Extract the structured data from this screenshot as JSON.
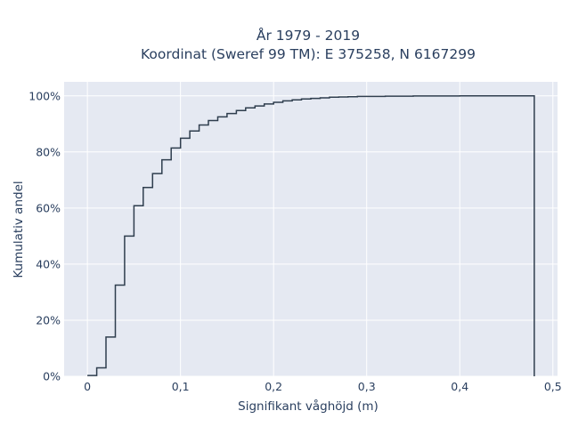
{
  "chart_data": {
    "type": "line",
    "line_shape": "step",
    "title_line1": "År 1979 - 2019",
    "title_line2": "Koordinat (Sweref 99 TM): E 375258, N 6167299",
    "xlabel": "Signifikant våghöjd (m)",
    "ylabel": "Kumulativ andel",
    "xlim": [
      -0.025,
      0.505
    ],
    "ylim": [
      0,
      1.05
    ],
    "x_ticks": [
      0,
      0.1,
      0.2,
      0.3,
      0.4,
      0.5
    ],
    "x_tick_labels": [
      "0",
      "0,1",
      "0,2",
      "0,3",
      "0,4",
      "0,5"
    ],
    "y_ticks": [
      0,
      0.2,
      0.4,
      0.6,
      0.8,
      1.0
    ],
    "y_tick_labels": [
      "0%",
      "20%",
      "40%",
      "60%",
      "80%",
      "100%"
    ],
    "grid": true,
    "background_color": "#e5e9f2",
    "line_color": "#2f3e4e",
    "x": [
      0,
      0.01,
      0.02,
      0.03,
      0.04,
      0.05,
      0.06,
      0.07,
      0.08,
      0.09,
      0.1,
      0.11,
      0.12,
      0.13,
      0.14,
      0.15,
      0.16,
      0.17,
      0.18,
      0.19,
      0.2,
      0.21,
      0.22,
      0.23,
      0.24,
      0.25,
      0.26,
      0.27,
      0.28,
      0.29,
      0.3,
      0.32,
      0.35,
      0.4,
      0.45,
      0.48
    ],
    "y": [
      0.003,
      0.03,
      0.14,
      0.325,
      0.5,
      0.608,
      0.673,
      0.723,
      0.772,
      0.814,
      0.849,
      0.875,
      0.896,
      0.912,
      0.925,
      0.937,
      0.948,
      0.957,
      0.964,
      0.971,
      0.977,
      0.982,
      0.986,
      0.989,
      0.991,
      0.993,
      0.995,
      0.996,
      0.997,
      0.998,
      0.998,
      0.999,
      0.9995,
      1.0,
      1.0,
      1.0
    ]
  }
}
